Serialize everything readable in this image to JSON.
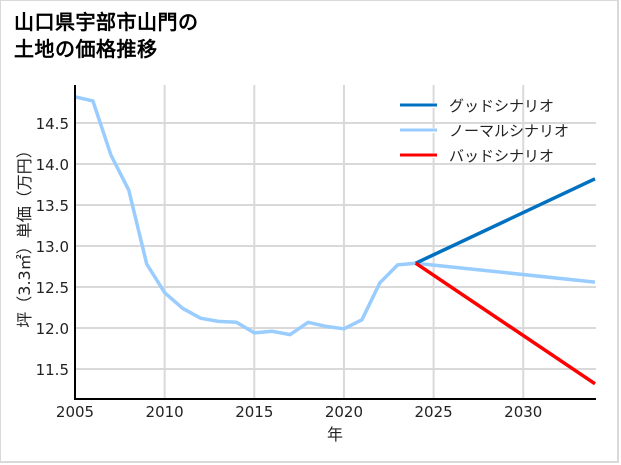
{
  "title": {
    "line1": "山口県宇部市山門の",
    "line2": "土地の価格推移"
  },
  "colors": {
    "good": "#0070c0",
    "normal": "#99ccff",
    "bad": "#ff0000",
    "grid": "#d9d9d9",
    "axis": "#000000"
  },
  "chart_data": {
    "type": "line",
    "title": "山口県宇部市山門の土地の価格推移",
    "xlabel": "年",
    "ylabel": "坪（3.3㎡）単価（万円）",
    "xlim": [
      2005,
      2034
    ],
    "ylim": [
      11.12,
      14.85
    ],
    "x_ticks": [
      2005,
      2010,
      2015,
      2020,
      2025,
      2030
    ],
    "y_ticks": [
      11.5,
      12.0,
      12.5,
      13.0,
      13.5,
      14.0,
      14.5
    ],
    "y_tick_labels": [
      "11.5",
      "12.0",
      "12.5",
      "13.0",
      "13.5",
      "14.0",
      "14.5"
    ],
    "grid": true,
    "legend_position": "upper right",
    "series": [
      {
        "name": "グッドシナリオ",
        "color": "#0070c0",
        "x": [
          2024,
          2034
        ],
        "values": [
          12.79,
          13.82
        ]
      },
      {
        "name": "ノーマルシナリオ",
        "color": "#99ccff",
        "x": [
          2005,
          2006,
          2007,
          2008,
          2009,
          2010,
          2011,
          2012,
          2013,
          2014,
          2015,
          2016,
          2017,
          2018,
          2019,
          2020,
          2021,
          2022,
          2023,
          2024,
          2034
        ],
        "values": [
          14.82,
          14.77,
          14.11,
          13.68,
          12.78,
          12.43,
          12.24,
          12.12,
          12.08,
          12.07,
          11.94,
          11.96,
          11.92,
          12.07,
          12.02,
          11.99,
          12.1,
          12.55,
          12.77,
          12.79,
          12.56
        ]
      },
      {
        "name": "バッドシナリオ",
        "color": "#ff0000",
        "x": [
          2024,
          2034
        ],
        "values": [
          12.79,
          11.32
        ]
      }
    ]
  }
}
